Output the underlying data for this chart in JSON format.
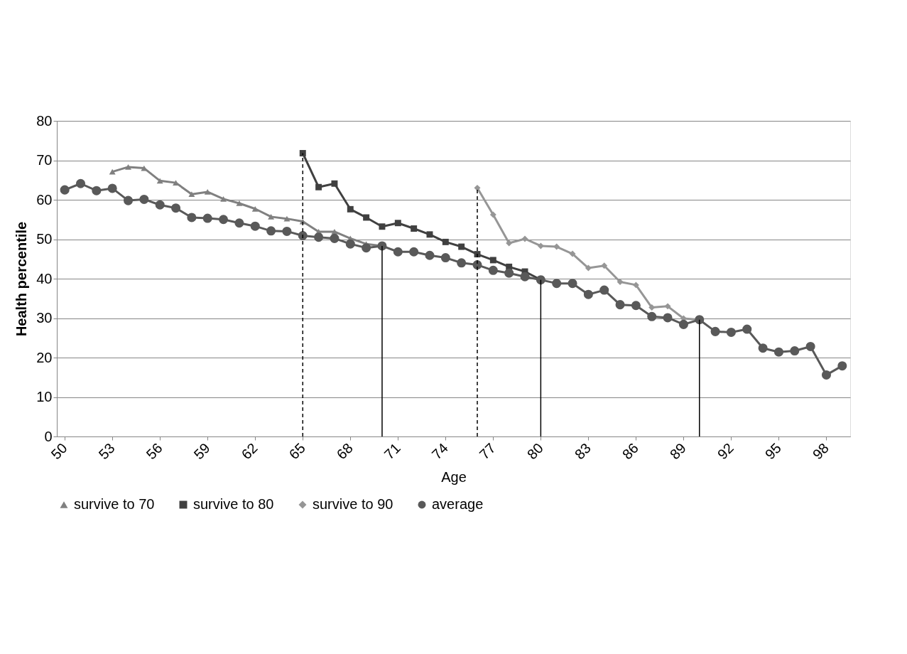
{
  "chart_data": {
    "type": "line",
    "xlabel": "Age",
    "ylabel": "Health percentile",
    "x": [
      50,
      51,
      52,
      53,
      54,
      55,
      56,
      57,
      58,
      59,
      60,
      61,
      62,
      63,
      64,
      65,
      66,
      67,
      68,
      69,
      70,
      71,
      72,
      73,
      74,
      75,
      76,
      77,
      78,
      79,
      80,
      81,
      82,
      83,
      84,
      85,
      86,
      87,
      88,
      89,
      90,
      91,
      92,
      93,
      94,
      95,
      96,
      97,
      98,
      99
    ],
    "series": [
      {
        "name": "survive to 70",
        "color": "#808080",
        "marker": "triangle",
        "values": [
          null,
          null,
          null,
          67.1,
          68.3,
          68.0,
          64.8,
          64.3,
          61.4,
          62.0,
          60.2,
          59.1,
          57.7,
          55.7,
          55.2,
          54.5,
          51.9,
          51.9,
          50.2,
          48.8,
          48.3,
          null,
          null,
          null,
          null,
          null,
          null,
          null,
          null,
          null,
          null,
          null,
          null,
          null,
          null,
          null,
          null,
          null,
          null,
          null,
          null,
          null,
          null,
          null,
          null,
          null,
          null,
          null,
          null,
          null
        ]
      },
      {
        "name": "survive to 80",
        "color": "#404040",
        "marker": "square",
        "values": [
          null,
          null,
          null,
          null,
          null,
          null,
          null,
          null,
          null,
          null,
          null,
          null,
          null,
          null,
          null,
          71.8,
          63.2,
          64.1,
          57.6,
          55.5,
          53.2,
          54.1,
          52.7,
          51.2,
          49.3,
          48.1,
          46.2,
          44.7,
          43.0,
          41.8,
          39.7,
          null,
          null,
          null,
          null,
          null,
          null,
          null,
          null,
          null,
          null,
          null,
          null,
          null,
          null,
          null,
          null,
          null,
          null,
          null
        ]
      },
      {
        "name": "survive to 90",
        "color": "#969696",
        "marker": "diamond",
        "values": [
          null,
          null,
          null,
          null,
          null,
          null,
          null,
          null,
          null,
          null,
          null,
          null,
          null,
          null,
          null,
          null,
          null,
          null,
          null,
          null,
          null,
          null,
          null,
          null,
          null,
          null,
          63.0,
          56.2,
          49.0,
          50.1,
          48.3,
          48.1,
          46.3,
          42.7,
          43.3,
          39.2,
          38.4,
          32.7,
          33.0,
          29.9,
          29.6,
          null,
          null,
          null,
          null,
          null,
          null,
          null,
          null,
          null
        ]
      },
      {
        "name": "average",
        "color": "#595959",
        "marker": "circle",
        "values": [
          62.5,
          64.1,
          62.3,
          62.9,
          59.8,
          60.1,
          58.7,
          57.9,
          55.5,
          55.3,
          55.0,
          54.1,
          53.3,
          52.1,
          52.0,
          50.9,
          50.5,
          50.2,
          48.8,
          47.8,
          48.3,
          46.8,
          46.8,
          45.9,
          45.3,
          44.0,
          43.5,
          42.1,
          41.4,
          40.5,
          39.7,
          38.8,
          38.8,
          36.0,
          37.1,
          33.4,
          33.2,
          30.4,
          30.1,
          28.4,
          29.6,
          26.6,
          26.4,
          27.2,
          22.4,
          21.4,
          21.7,
          22.8,
          15.6,
          17.9
        ]
      },
      {
        "color": "#000000",
        "marker": "none",
        "line_style": "dashed",
        "x": [
          65,
          65
        ],
        "values": [
          0,
          71.8
        ]
      },
      {
        "color": "#000000",
        "marker": "none",
        "line_style": "solid",
        "x": [
          70,
          70
        ],
        "values": [
          0,
          48.3
        ]
      },
      {
        "color": "#000000",
        "marker": "none",
        "line_style": "dashed",
        "x": [
          76,
          76
        ],
        "values": [
          0,
          63.0
        ]
      },
      {
        "color": "#000000",
        "marker": "none",
        "line_style": "solid",
        "x": [
          80,
          80
        ],
        "values": [
          0,
          39.7
        ]
      },
      {
        "color": "#000000",
        "marker": "none",
        "line_style": "solid",
        "x": [
          90,
          90
        ],
        "values": [
          0,
          29.6
        ]
      }
    ],
    "xlim": [
      49.5,
      99.5
    ],
    "xticks": [
      50,
      53,
      56,
      59,
      62,
      65,
      68,
      71,
      74,
      77,
      80,
      83,
      86,
      89,
      92,
      95,
      98
    ],
    "ylim": [
      0,
      80
    ],
    "yticks": [
      0,
      10,
      20,
      30,
      40,
      50,
      60,
      70,
      80
    ],
    "grid": "y",
    "legend": "bottom"
  }
}
